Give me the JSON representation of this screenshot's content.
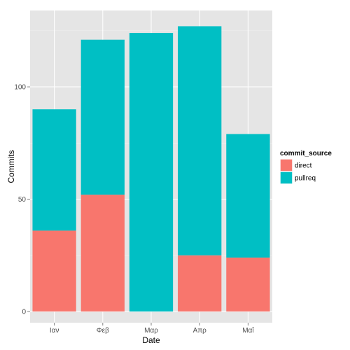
{
  "chart_data": {
    "type": "bar",
    "stacked": true,
    "title": "",
    "xlabel": "Date",
    "ylabel": "Commits",
    "categories": [
      "Ιαν",
      "Φεβ",
      "Μαρ",
      "Απρ",
      "Μαΐ"
    ],
    "series": [
      {
        "name": "direct",
        "color": "#F8766D",
        "values": [
          36,
          52,
          0,
          25,
          24
        ]
      },
      {
        "name": "pullreq",
        "color": "#00BFC4",
        "values": [
          54,
          69,
          124,
          102,
          55
        ]
      }
    ],
    "ylim": [
      -5,
      134
    ],
    "yticks": [
      0,
      50,
      100
    ],
    "grid": true,
    "legend": {
      "title": "commit_source",
      "position": "right"
    }
  }
}
